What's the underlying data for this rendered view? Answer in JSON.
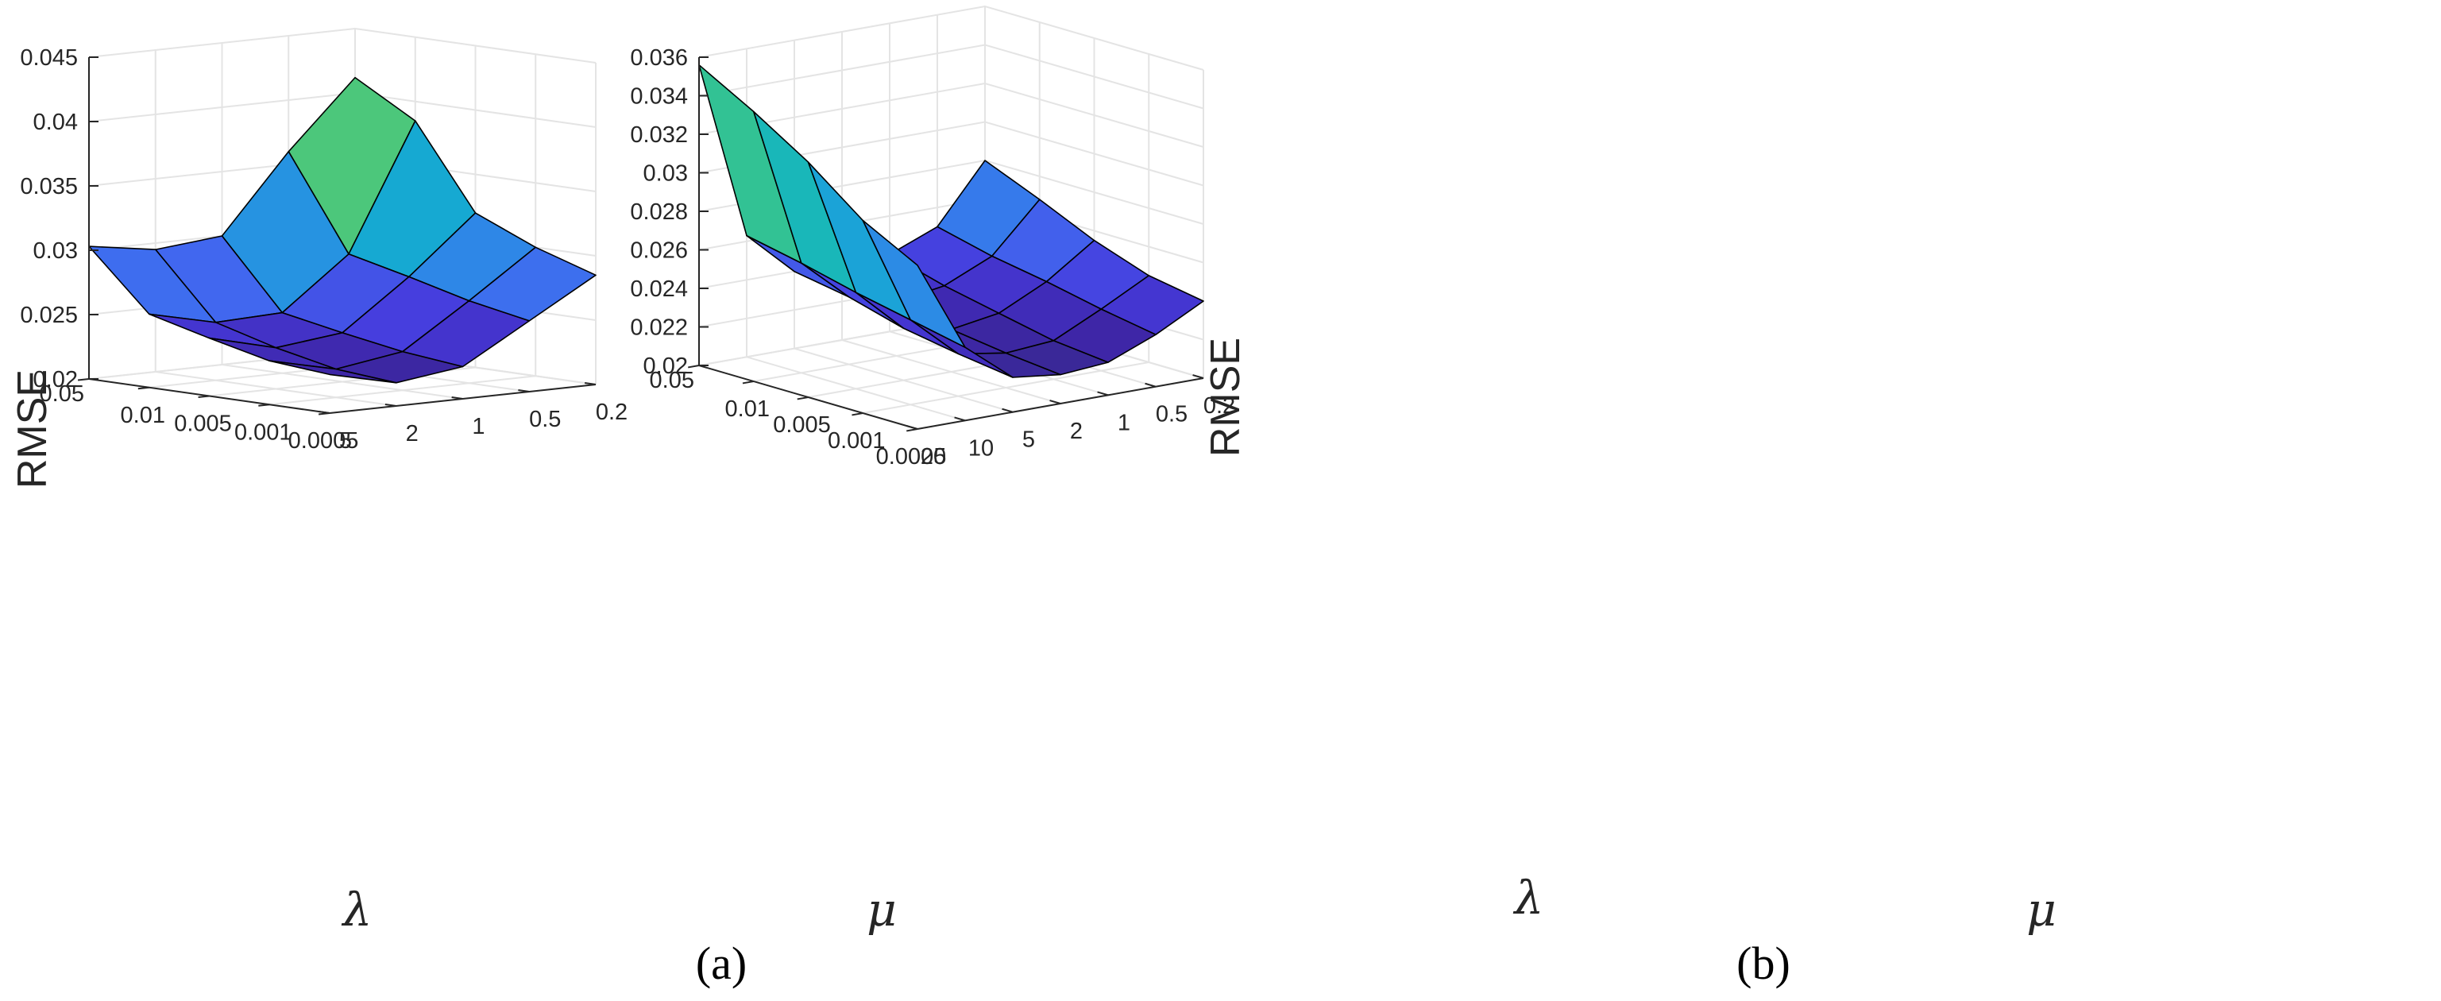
{
  "chart_data": [
    {
      "type": "surface",
      "caption": "(a)",
      "zlabel": "RMSE",
      "lambda_symbol": "λ",
      "mu_symbol": "μ",
      "zlim": [
        0.02,
        0.045
      ],
      "z_ticks": [
        "0.02",
        "0.025",
        "0.03",
        "0.035",
        "0.04",
        "0.045"
      ],
      "lambda_ticks": [
        "0.05",
        "0.01",
        "0.005",
        "0.001",
        "0.0005"
      ],
      "mu_ticks": [
        "5",
        "2",
        "1",
        "0.5",
        "0.2"
      ],
      "values": [
        [
          0.0303,
          0.0295,
          0.03,
          0.036,
          0.0412
        ],
        [
          0.0257,
          0.0245,
          0.0247,
          0.0287,
          0.0385
        ],
        [
          0.0245,
          0.0232,
          0.0238,
          0.0276,
          0.032
        ],
        [
          0.0234,
          0.0222,
          0.023,
          0.0264,
          0.03
        ],
        [
          0.023,
          0.0218,
          0.0225,
          0.0255,
          0.0285
        ]
      ]
    },
    {
      "type": "surface",
      "caption": "(b)",
      "zlabel": "RMSE",
      "lambda_symbol": "λ",
      "mu_symbol": "μ",
      "zlim": [
        0.02,
        0.036
      ],
      "z_ticks": [
        "0.02",
        "0.022",
        "0.024",
        "0.026",
        "0.028",
        "0.03",
        "0.032",
        "0.034",
        "0.036"
      ],
      "lambda_ticks": [
        "0.05",
        "0.01",
        "0.005",
        "0.001",
        "0.0005"
      ],
      "mu_ticks": [
        "20",
        "10",
        "5",
        "2",
        "1",
        "0.5",
        "0.2"
      ],
      "values": [
        [
          0.0356,
          0.0263,
          0.024,
          0.0235,
          0.024,
          0.025,
          0.028
        ],
        [
          0.034,
          0.0257,
          0.0235,
          0.0228,
          0.0232,
          0.0243,
          0.0268
        ],
        [
          0.0322,
          0.025,
          0.0227,
          0.0222,
          0.0226,
          0.0238,
          0.0255
        ],
        [
          0.03,
          0.0244,
          0.0222,
          0.0218,
          0.022,
          0.0232,
          0.0245
        ],
        [
          0.0285,
          0.0238,
          0.0218,
          0.0215,
          0.0217,
          0.0227,
          0.024
        ]
      ]
    }
  ]
}
